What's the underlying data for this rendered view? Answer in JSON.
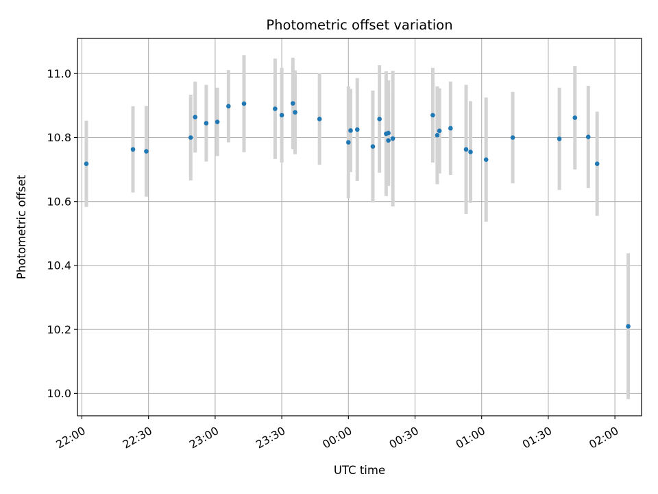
{
  "chart_data": {
    "type": "scatter",
    "title": "Photometric offset variation",
    "xlabel": "UTC time",
    "ylabel": "Photometric offset",
    "xlim": [
      "21:58:00",
      "02:12:00"
    ],
    "ylim": [
      9.93,
      11.11
    ],
    "x_ticks": [
      "22:00",
      "22:30",
      "23:00",
      "23:30",
      "00:00",
      "00:30",
      "01:00",
      "01:30",
      "02:00"
    ],
    "y_ticks": [
      "10.0",
      "10.2",
      "10.4",
      "10.6",
      "10.8",
      "11.0"
    ],
    "grid": true,
    "colors": {
      "points": "#1f77b4",
      "errorbars": "#d3d3d3",
      "grid": "#b0b0b0"
    },
    "series": [
      {
        "points": [
          {
            "x": "22:02",
            "y": 10.718,
            "yerr": 0.135
          },
          {
            "x": "22:23",
            "y": 10.763,
            "yerr": 0.135
          },
          {
            "x": "22:29",
            "y": 10.757,
            "yerr": 0.142
          },
          {
            "x": "22:49",
            "y": 10.8,
            "yerr": 0.134
          },
          {
            "x": "22:51",
            "y": 10.864,
            "yerr": 0.111
          },
          {
            "x": "22:56",
            "y": 10.845,
            "yerr": 0.12
          },
          {
            "x": "23:01",
            "y": 10.849,
            "yerr": 0.107
          },
          {
            "x": "23:06",
            "y": 10.898,
            "yerr": 0.113
          },
          {
            "x": "23:13",
            "y": 10.906,
            "yerr": 0.152
          },
          {
            "x": "23:27",
            "y": 10.89,
            "yerr": 0.157
          },
          {
            "x": "23:30",
            "y": 10.87,
            "yerr": 0.148
          },
          {
            "x": "23:35",
            "y": 10.907,
            "yerr": 0.143
          },
          {
            "x": "23:36",
            "y": 10.879,
            "yerr": 0.131
          },
          {
            "x": "23:47",
            "y": 10.858,
            "yerr": 0.143
          },
          {
            "x": "00:00",
            "y": 10.785,
            "yerr": 0.175
          },
          {
            "x": "00:01",
            "y": 10.822,
            "yerr": 0.13
          },
          {
            "x": "00:04",
            "y": 10.825,
            "yerr": 0.161
          },
          {
            "x": "00:11",
            "y": 10.772,
            "yerr": 0.175
          },
          {
            "x": "00:14",
            "y": 10.858,
            "yerr": 0.168
          },
          {
            "x": "00:17",
            "y": 10.812,
            "yerr": 0.195
          },
          {
            "x": "00:18",
            "y": 10.814,
            "yerr": 0.165
          },
          {
            "x": "00:18",
            "y": 10.791,
            "yerr": 0.135
          },
          {
            "x": "00:20",
            "y": 10.797,
            "yerr": 0.212
          },
          {
            "x": "00:38",
            "y": 10.87,
            "yerr": 0.148
          },
          {
            "x": "00:40",
            "y": 10.807,
            "yerr": 0.153
          },
          {
            "x": "00:41",
            "y": 10.821,
            "yerr": 0.133
          },
          {
            "x": "00:46",
            "y": 10.829,
            "yerr": 0.146
          },
          {
            "x": "00:53",
            "y": 10.763,
            "yerr": 0.202
          },
          {
            "x": "00:55",
            "y": 10.755,
            "yerr": 0.159
          },
          {
            "x": "01:02",
            "y": 10.731,
            "yerr": 0.194
          },
          {
            "x": "01:14",
            "y": 10.8,
            "yerr": 0.143
          },
          {
            "x": "01:35",
            "y": 10.796,
            "yerr": 0.16
          },
          {
            "x": "01:42",
            "y": 10.862,
            "yerr": 0.162
          },
          {
            "x": "01:48",
            "y": 10.802,
            "yerr": 0.16
          },
          {
            "x": "01:52",
            "y": 10.718,
            "yerr": 0.163
          },
          {
            "x": "02:06",
            "y": 10.21,
            "yerr": 0.228
          }
        ]
      }
    ]
  }
}
